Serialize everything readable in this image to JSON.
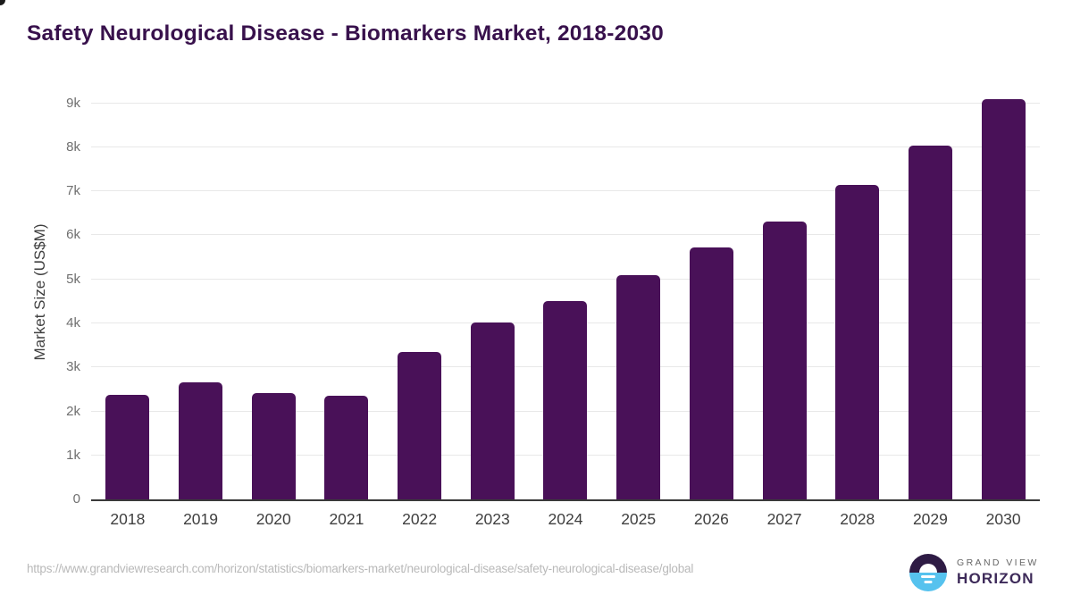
{
  "header": {
    "title": "Safety Neurological Disease - Biomarkers Market, 2018-2030"
  },
  "chart_data": {
    "type": "bar",
    "title": "Safety Neurological Disease - Biomarkers Market, 2018-2030",
    "categories": [
      "2018",
      "2019",
      "2020",
      "2021",
      "2022",
      "2023",
      "2024",
      "2025",
      "2026",
      "2027",
      "2028",
      "2029",
      "2030"
    ],
    "values": [
      2380,
      2650,
      2420,
      2360,
      3360,
      4030,
      4510,
      5090,
      5720,
      6310,
      7150,
      8040,
      9090
    ],
    "xlabel": "",
    "ylabel": "Market Size (US$M)",
    "ylim": [
      0,
      9420
    ],
    "yticks": [
      0,
      1000,
      2000,
      3000,
      4000,
      5000,
      6000,
      7000,
      8000,
      9000
    ],
    "ytick_labels": [
      "0",
      "1k",
      "2k",
      "3k",
      "4k",
      "5k",
      "6k",
      "7k",
      "8k",
      "9k"
    ],
    "grid": true,
    "legend": "none",
    "bar_color": "#491158"
  },
  "colors": {
    "title_text": "#38114c",
    "bar": "#491158",
    "gridline": "#e8e8e8",
    "axis_line": "#3a3a3a",
    "tick_text": "#6f6f6f",
    "x_tick_text": "#3f3f3f",
    "source_text": "#b9b9b9",
    "logo_dark_purple": "#2e1b44",
    "logo_light_blue": "#56c2ee",
    "logo_horizon_text": "#3d2a59"
  },
  "footer": {
    "source_url": "https://www.grandviewresearch.com/horizon/statistics/biomarkers-market/neurological-disease/safety-neurological-disease/global",
    "logo": {
      "top_text": "GRAND VIEW",
      "bottom_text": "HORIZON"
    }
  }
}
